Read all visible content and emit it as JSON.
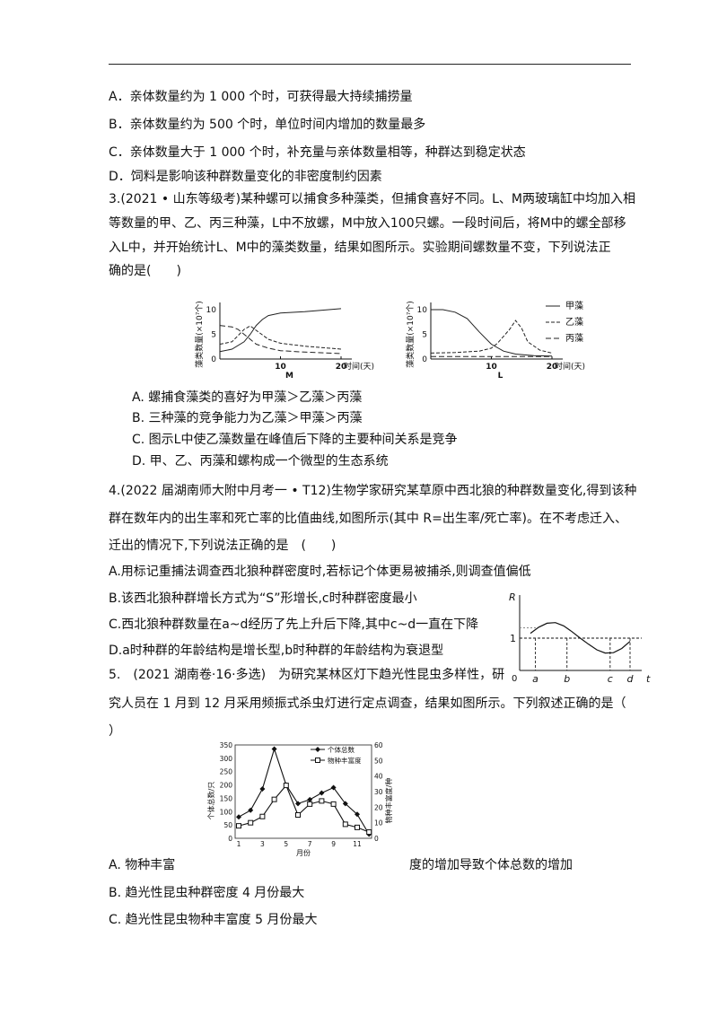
{
  "q2_options": {
    "a": "A．亲体数量约为 1 000 个时，可获得最大持续捕捞量",
    "b": "B．亲体数量约为 500 个时，单位时间内增加的数量最多",
    "c": "C．亲体数量大于 1 000 个时，补充量与亲体数量相等，种群达到稳定状态",
    "d": "D．饲料是影响该种群数量变化的非密度制约因素"
  },
  "q3": {
    "stem": [
      "3.(2021 • 山东等级考)某种螺可以捕食多种藻类，但捕食喜好不同。L、M两玻璃缸中均加入相",
      "等数量的甲、乙、丙三种藻，L中不放螺，M中放入100只螺。一段时间后，将M中的螺全部移",
      "入L中，并开始统计L、M中的藻类数量，结果如图所示。实验期间螺数量不变，下列说法正",
      "确的是(　　)"
    ],
    "options": [
      "A. 螺捕食藻类的喜好为甲藻＞乙藻＞丙藻",
      "B. 三种藻的竞争能力为乙藻＞甲藻＞丙藻",
      "C. 图示L中使乙藻数量在峰值后下降的主要种间关系是竞争",
      "D. 甲、乙、丙藻和螺构成一个微型的生态系统"
    ]
  },
  "chart_data": [
    {
      "type": "line",
      "title": "M",
      "ylabel": "藻类数量(×10⁷个)",
      "xlabel": "时间(天)",
      "xlim": [
        0,
        20
      ],
      "ylim": [
        0,
        10
      ],
      "xticks": [
        "0",
        "10",
        "20"
      ],
      "yticks": [
        "0",
        "5",
        "10"
      ],
      "series": [
        {
          "name": "甲藻",
          "style": "solid",
          "x": [
            0,
            2,
            4,
            5,
            6,
            7,
            8,
            10,
            14,
            20
          ],
          "y": [
            1.5,
            2.0,
            3.5,
            5.0,
            6.8,
            8.0,
            8.8,
            9.3,
            9.6,
            10.2
          ]
        },
        {
          "name": "乙藻",
          "style": "dashed",
          "x": [
            0,
            2,
            4,
            5,
            6,
            8,
            10,
            14,
            20
          ],
          "y": [
            3.0,
            3.5,
            6.0,
            6.7,
            5.8,
            4.0,
            3.2,
            2.6,
            2.0
          ]
        },
        {
          "name": "丙藻",
          "style": "dashed",
          "x": [
            0,
            2,
            3,
            4,
            6,
            8,
            10,
            14,
            20
          ],
          "y": [
            6.8,
            6.5,
            6.0,
            5.0,
            3.0,
            2.2,
            1.7,
            1.4,
            1.1
          ]
        }
      ]
    },
    {
      "type": "line",
      "title": "L",
      "ylabel": "藻类数量(×10⁷个)",
      "xlabel": "时间(天)",
      "xlim": [
        0,
        20
      ],
      "ylim": [
        0,
        10
      ],
      "xticks": [
        "0",
        "10",
        "20"
      ],
      "yticks": [
        "0",
        "5",
        "10"
      ],
      "legend": "top-right",
      "series": [
        {
          "name": "甲藻",
          "style": "solid",
          "x": [
            0,
            2,
            4,
            6,
            8,
            10,
            12,
            14,
            17,
            20
          ],
          "y": [
            10.0,
            10.0,
            9.5,
            8.2,
            5.5,
            3.0,
            1.6,
            1.0,
            0.7,
            0.6
          ]
        },
        {
          "name": "乙藻",
          "style": "dashed",
          "x": [
            0,
            4,
            8,
            10,
            11,
            13,
            14,
            15,
            16,
            18,
            20
          ],
          "y": [
            1.2,
            1.3,
            1.6,
            2.2,
            3.2,
            6.0,
            7.8,
            6.2,
            3.5,
            1.8,
            1.2
          ]
        },
        {
          "name": "丙藻",
          "style": "dashed",
          "x": [
            0,
            5,
            10,
            15,
            20
          ],
          "y": [
            0.5,
            0.5,
            0.5,
            0.5,
            0.5
          ]
        }
      ]
    },
    {
      "type": "line",
      "ylabel": "R",
      "xlabel": "t",
      "xticks": [
        "a",
        "b",
        "c",
        "d"
      ],
      "yticks": [
        "0",
        "1"
      ],
      "series": [
        {
          "name": "",
          "x": [
            0,
            0.5,
            1,
            1.5,
            2,
            2.5,
            3,
            3.5,
            4,
            4.5,
            5,
            5.5,
            6
          ],
          "y": [
            1.15,
            1.34,
            1.46,
            1.48,
            1.38,
            1.2,
            1.0,
            0.81,
            0.64,
            0.54,
            0.55,
            0.68,
            0.9
          ]
        }
      ]
    },
    {
      "type": "line",
      "ylabel": "个体总数/只",
      "y2label": "物种丰富度/种",
      "xlabel": "月份",
      "xticks": [
        "1",
        "3",
        "5",
        "7",
        "9",
        "11"
      ],
      "yticks": [
        "0",
        "50",
        "100",
        "150",
        "200",
        "250",
        "300",
        "350"
      ],
      "y2ticks": [
        "0",
        "10",
        "20",
        "30",
        "40",
        "50",
        "60"
      ],
      "ylim": [
        0,
        350
      ],
      "y2lim": [
        0,
        60
      ],
      "legend": "top-right",
      "series": [
        {
          "name": "个体总数",
          "axis": "left",
          "x": [
            1,
            2,
            3,
            4,
            5,
            6,
            7,
            8,
            9,
            10,
            11,
            12
          ],
          "y": [
            80,
            105,
            185,
            335,
            200,
            130,
            145,
            170,
            190,
            130,
            90,
            15
          ]
        },
        {
          "name": "物种丰富度",
          "axis": "right",
          "x": [
            1,
            2,
            3,
            4,
            5,
            6,
            7,
            8,
            9,
            10,
            11,
            12
          ],
          "y": [
            8,
            10,
            14,
            25,
            34,
            15,
            22,
            24,
            22,
            9,
            7,
            4
          ]
        }
      ]
    }
  ],
  "q4": {
    "stem": [
      "4.(2022 届湖南师大附中月考一 • T12)生物学家研究某草原中西北狼的种群数量变化,得到该种",
      "群在数年内的出生率和死亡率的比值曲线,如图所示(其中 R=出生率/死亡率)。在不考虑迁入、",
      "迁出的情况下,下列说法正确的是　(　　)"
    ],
    "options": [
      "A.用标记重捕法调查西北狼种群密度时,若标记个体更易被捕杀,则调查值偏低",
      "B.该西北狼种群增长方式为“S”形增长,c时种群密度最小",
      "C.西北狼种群数量在a~d经历了先上升后下降,其中c~d一直在下降",
      "D.a时种群的年龄结构是增长型,b时种群的年龄结构为衰退型"
    ]
  },
  "q5": {
    "stem": [
      "5.　(2021 湖南卷·16·多选)　为研究某林区灯下趋光性昆虫多样性，研",
      "究人员在 1 月到 12 月采用频振式杀虫灯进行定点调查，结果如图所示。下列叙述正确的是（",
      "）"
    ],
    "option_a_left": "A. 物种丰富",
    "option_a_right": "度的增加导致个体总数的增加",
    "option_b": "B. 趋光性昆虫种群密度 4 月份最大",
    "option_c": "C. 趋光性昆虫物种丰富度 5 月份最大"
  }
}
